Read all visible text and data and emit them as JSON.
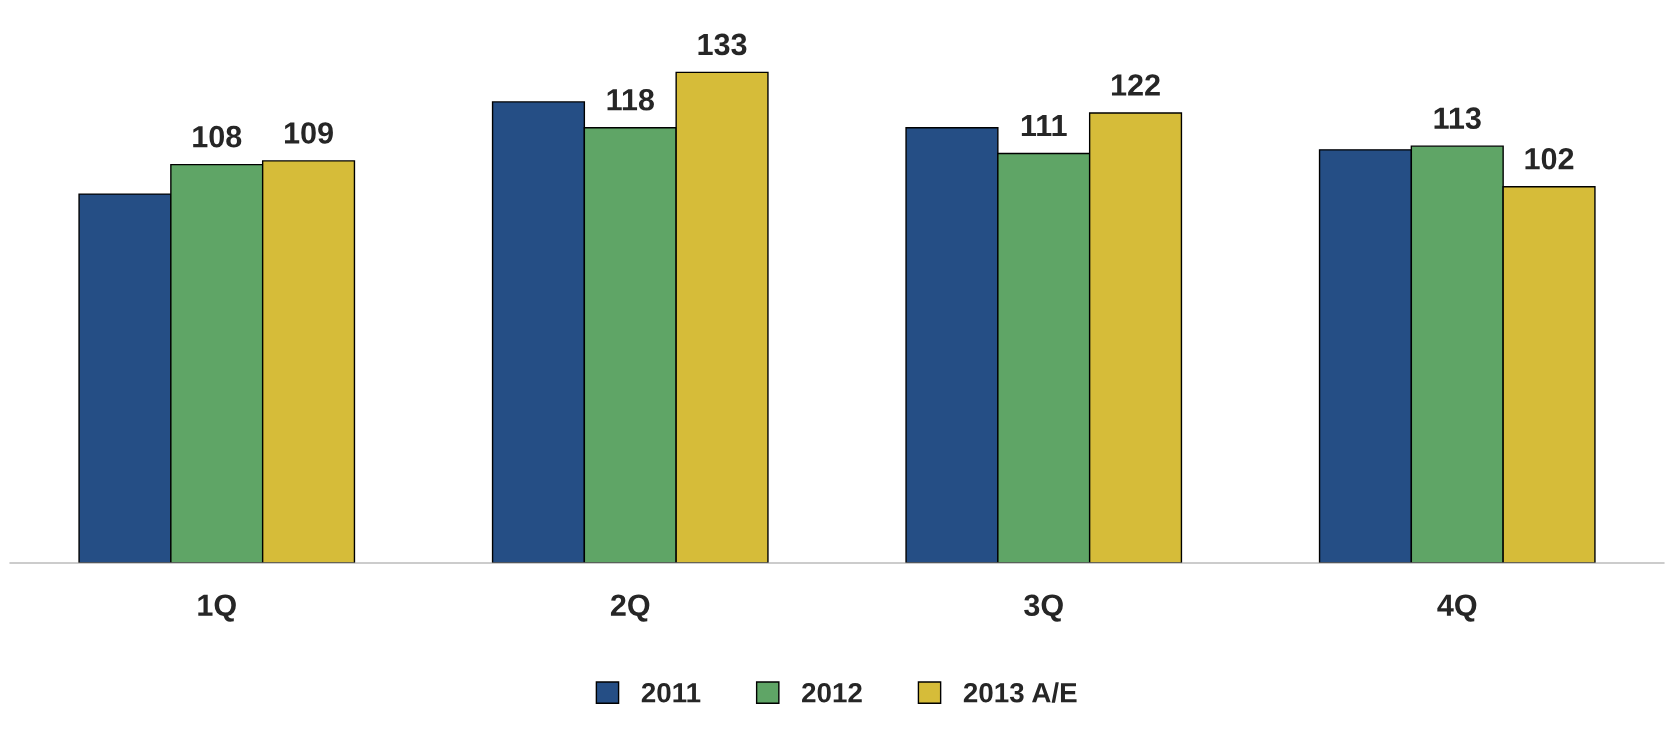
{
  "chart_data": {
    "type": "bar",
    "categories": [
      "1Q",
      "2Q",
      "3Q",
      "4Q"
    ],
    "series": [
      {
        "name": "2011",
        "color": "#254e85",
        "values": [
          100,
          125,
          118,
          112
        ],
        "value_labels": [
          null,
          null,
          null,
          null
        ]
      },
      {
        "name": "2012",
        "color": "#5fa566",
        "values": [
          108,
          118,
          111,
          113
        ],
        "value_labels": [
          "108",
          "118",
          "111",
          "113"
        ]
      },
      {
        "name": "2013 A/E",
        "color": "#d6bc39",
        "values": [
          109,
          133,
          122,
          102
        ],
        "value_labels": [
          "109",
          "133",
          "122",
          "102"
        ]
      }
    ],
    "tick_labels": "x",
    "legend": "bottom",
    "grid": false
  }
}
